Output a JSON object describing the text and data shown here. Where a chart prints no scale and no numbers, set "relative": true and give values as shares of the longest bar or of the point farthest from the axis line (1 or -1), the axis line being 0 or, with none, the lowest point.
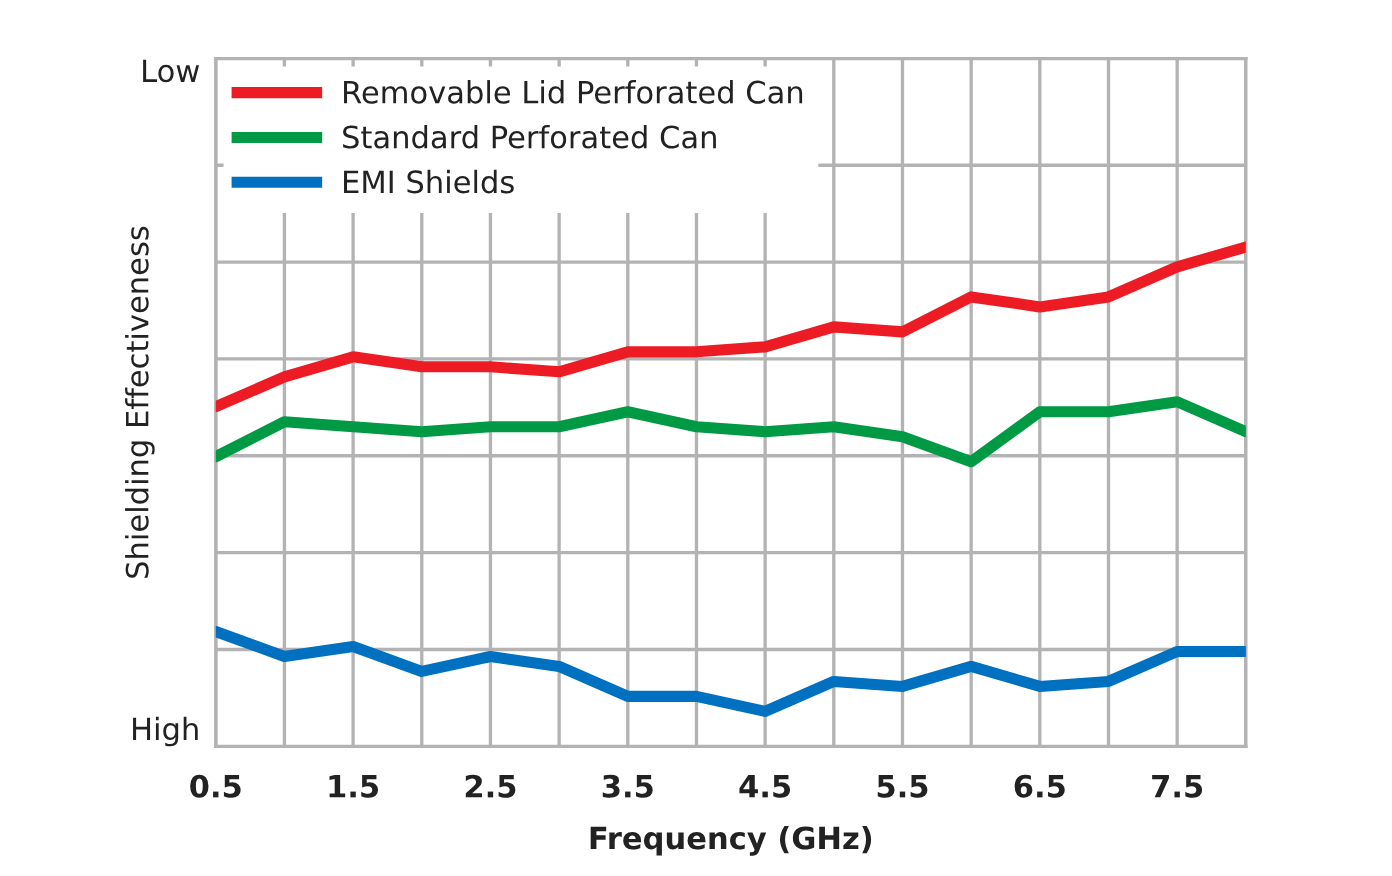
{
  "chart_data": {
    "type": "line",
    "relative": true,
    "xlabel": "Frequency (GHz)",
    "ylabel": "Shielding Effectiveness",
    "annotations": [
      "Low",
      "High"
    ],
    "x": [
      0.5,
      1,
      1.5,
      2,
      2.5,
      3,
      3.5,
      4,
      4.5,
      5,
      5.5,
      6,
      6.5,
      7,
      7.5,
      8
    ],
    "xlim": [
      0.5,
      8
    ],
    "xticks": [
      0.5,
      {
        "value": 1,
        "label": null
      },
      1.5,
      {
        "value": 2,
        "label": null
      },
      2.5,
      {
        "value": 3,
        "label": null
      },
      3.5,
      {
        "value": 4,
        "label": null
      },
      4.5,
      {
        "value": 5,
        "label": null
      },
      5.5,
      {
        "value": 6,
        "label": null
      },
      6.5,
      {
        "value": 7,
        "label": null
      },
      7.5,
      {
        "value": 8,
        "label": null
      }
    ],
    "series": [
      {
        "name": "Removable Lid Perforated Can",
        "color": "#ed1c24",
        "values": [
          0.68,
          0.74,
          0.78,
          0.76,
          0.76,
          0.75,
          0.79,
          0.79,
          0.8,
          0.84,
          0.83,
          0.9,
          0.88,
          0.9,
          0.96,
          1
        ]
      },
      {
        "name": "Standard Perforated Can",
        "color": "#009a44",
        "values": [
          0.58,
          0.65,
          0.64,
          0.63,
          0.64,
          0.64,
          0.67,
          0.64,
          0.63,
          0.64,
          0.62,
          0.57,
          0.67,
          0.67,
          0.69,
          0.63
        ]
      },
      {
        "name": "EMI Shields",
        "color": "#0070c0",
        "values": [
          0.23,
          0.18,
          0.2,
          0.15,
          0.18,
          0.16,
          0.1,
          0.1,
          0.07,
          0.13,
          0.12,
          0.16,
          0.12,
          0.13,
          0.19,
          0.19
        ]
      }
    ],
    "grid": true,
    "legend": "top left",
    "marker": "none",
    "line_style": "solid"
  }
}
